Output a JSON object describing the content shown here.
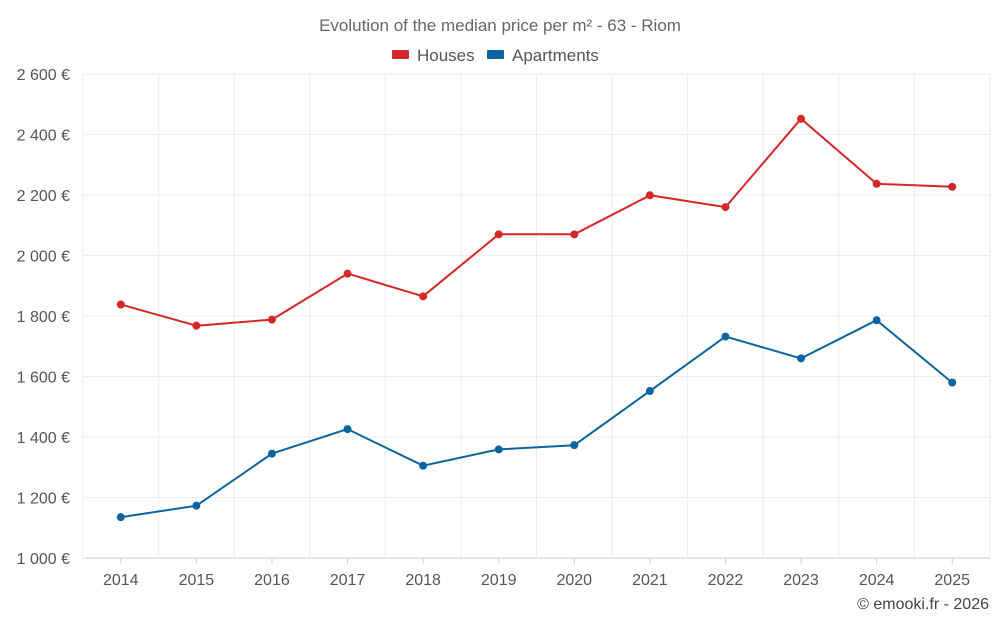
{
  "chart_data": {
    "type": "line",
    "title": "Evolution of the median price per m² - 63 - Riom",
    "categories": [
      "2014",
      "2015",
      "2016",
      "2017",
      "2018",
      "2019",
      "2020",
      "2021",
      "2022",
      "2023",
      "2024",
      "2025"
    ],
    "series": [
      {
        "name": "Houses",
        "color": "#d62728",
        "values": [
          1838,
          1768,
          1788,
          1940,
          1865,
          2070,
          2070,
          2199,
          2160,
          2452,
          2237,
          2227
        ]
      },
      {
        "name": "Apartments",
        "color": "#0a64a0",
        "values": [
          1135,
          1173,
          1345,
          1426,
          1305,
          1359,
          1373,
          1552,
          1732,
          1660,
          1786,
          1580
        ]
      }
    ],
    "ylim": [
      1000,
      2600
    ],
    "yticks": [
      1000,
      1200,
      1400,
      1600,
      1800,
      2000,
      2200,
      2400,
      2600
    ],
    "ytick_labels": [
      "1 000 €",
      "1 200 €",
      "1 400 €",
      "1 600 €",
      "1 800 €",
      "2 000 €",
      "2 200 €",
      "2 400 €",
      "2 600 €"
    ],
    "xlabel": "",
    "ylabel": "",
    "grid": true,
    "legend_position": "top-center",
    "credit": "© emooki.fr - 2026"
  }
}
